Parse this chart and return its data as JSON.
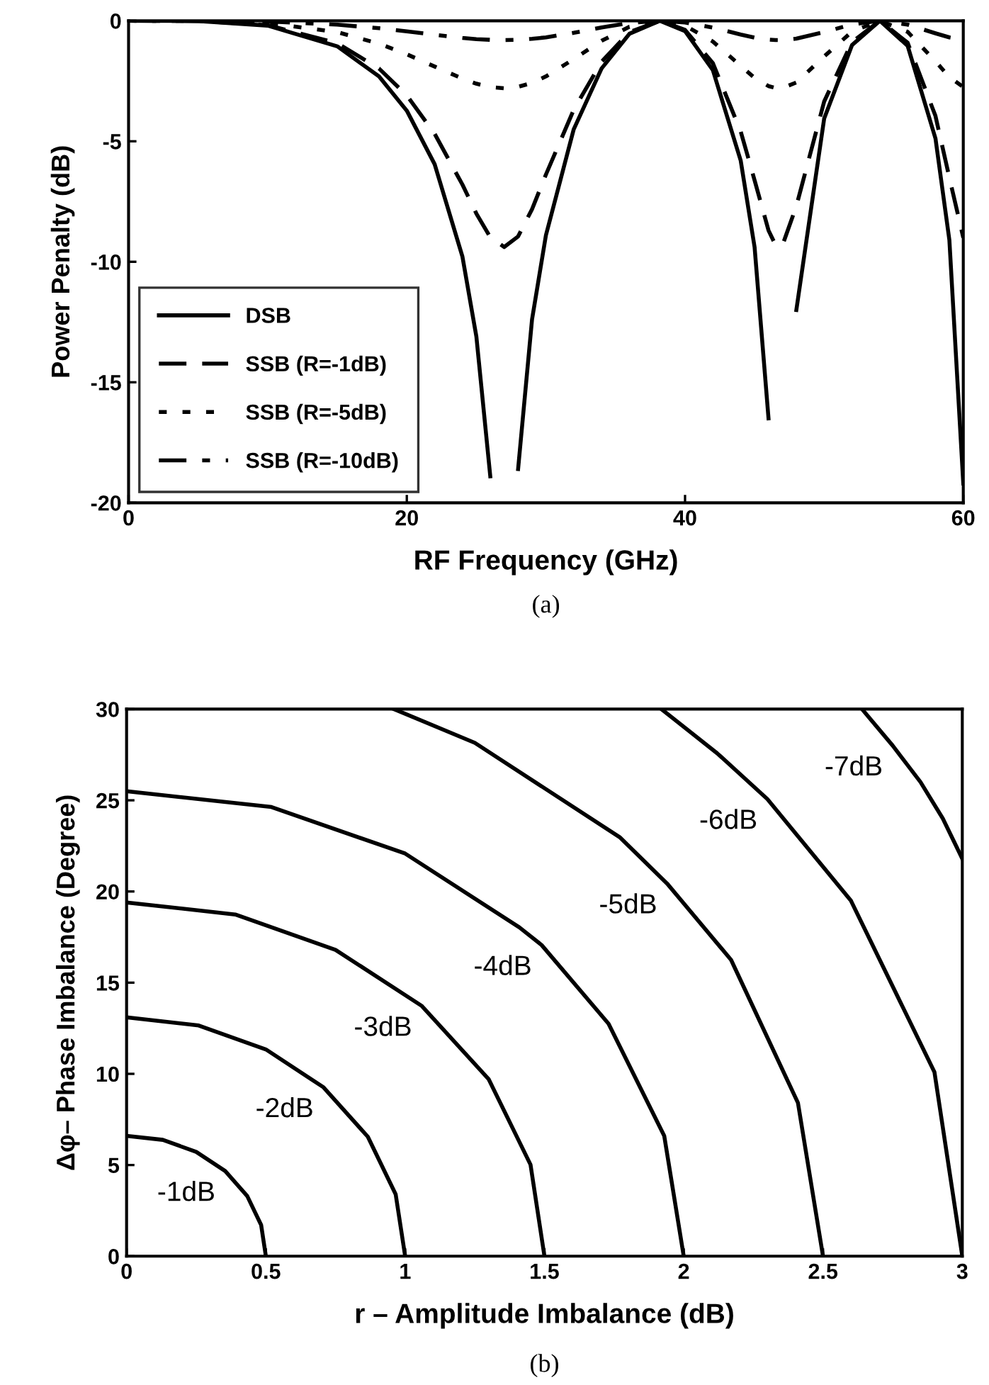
{
  "chart_data": [
    {
      "type": "line",
      "xlabel": "RF Frequency (GHz)",
      "ylabel": "Power Penalty (dB)",
      "annotations": [
        "(a)"
      ],
      "x": [
        0,
        5,
        10,
        15,
        18,
        20,
        22,
        24,
        25,
        26,
        27,
        28,
        29,
        30,
        32,
        34,
        36,
        38.2,
        40,
        42,
        44,
        45,
        46,
        46.5,
        47,
        48,
        50,
        52,
        54,
        56,
        58,
        59,
        60
      ],
      "series": [
        {
          "name": "DSB",
          "color": "#000000",
          "line_style": "solid",
          "values": [
            0,
            -0.01,
            -0.2,
            -1.06,
            -2.31,
            -3.73,
            -5.95,
            -9.79,
            -13.1,
            -18.9,
            null,
            -18.6,
            -12.4,
            -8.9,
            -4.5,
            -1.98,
            -0.54,
            0,
            -0.43,
            -2.05,
            -5.8,
            -9.4,
            -16.5,
            null,
            null,
            -12,
            -4.06,
            -1.01,
            0,
            -1.04,
            -4.88,
            -9.1,
            -19.2
          ]
        },
        {
          "name": "SSB (R=-1dB)",
          "color": "#000000",
          "line_style": "dashed",
          "values": [
            0,
            -0.01,
            -0.18,
            -0.93,
            -1.98,
            -3.1,
            -4.69,
            -6.8,
            -8.0,
            -8.98,
            -9.39,
            -8.95,
            -7.82,
            -6.38,
            -3.69,
            -1.7,
            -0.47,
            0,
            -0.38,
            -1.76,
            -4.59,
            -6.62,
            -8.7,
            -9.3,
            -9.32,
            -7.69,
            -3.35,
            -0.88,
            0,
            -0.91,
            -3.95,
            -6.51,
            -9.0
          ]
        },
        {
          "name": "SSB (R=-5dB)",
          "color": "#000000",
          "line_style": "dotted",
          "values": [
            0,
            -0.01,
            -0.09,
            -0.47,
            -0.95,
            -1.39,
            -1.9,
            -2.4,
            -2.61,
            -2.75,
            -2.8,
            -2.74,
            -2.58,
            -2.31,
            -1.59,
            -0.83,
            -0.25,
            0,
            -0.2,
            -0.86,
            -1.87,
            -2.37,
            -2.71,
            -2.79,
            -2.79,
            -2.56,
            -1.48,
            -0.45,
            0,
            -0.46,
            -1.68,
            -2.34,
            -2.75
          ]
        },
        {
          "name": "SSB (R=-10dB)",
          "color": "#000000",
          "line_style": "dashdot",
          "values": [
            0,
            0,
            -0.03,
            -0.16,
            -0.31,
            -0.44,
            -0.58,
            -0.71,
            -0.76,
            -0.79,
            -0.8,
            -0.79,
            -0.75,
            -0.69,
            -0.5,
            -0.28,
            -0.09,
            0,
            -0.07,
            -0.28,
            -0.57,
            -0.7,
            -0.78,
            -0.8,
            -0.8,
            -0.74,
            -0.47,
            -0.15,
            0,
            -0.16,
            -0.52,
            -0.69,
            -0.79
          ]
        }
      ],
      "xlim": [
        0,
        60
      ],
      "xticks": [
        0,
        20,
        40,
        60
      ],
      "ylim": [
        -20,
        0
      ],
      "yticks": [
        -20,
        -15,
        -10,
        -5,
        0
      ],
      "grid": false,
      "legend": "bottom left"
    },
    {
      "type": "line",
      "xlabel": "r – Amplitude Imbalance (dB)",
      "ylabel": "Δφ– Phase Imbalance (Degree)",
      "annotations": [
        {
          "text": "-1dB",
          "x": 0.354,
          "y": 4.67
        },
        {
          "text": "-2dB",
          "x": 0.707,
          "y": 9.26
        },
        {
          "text": "-3dB",
          "x": 1.06,
          "y": 13.72
        },
        {
          "text": "-4dB",
          "x": 1.49,
          "y": 17.06
        },
        {
          "text": "-5dB",
          "x": 1.94,
          "y": 20.44
        },
        {
          "text": "-6dB",
          "x": 2.3,
          "y": 25.07
        },
        {
          "text": "-7dB",
          "x": 2.75,
          "y": 28
        },
        "(b)"
      ],
      "series": [
        {
          "color": "#000000",
          "x": [
            0,
            0.13,
            0.25,
            0.354,
            0.433,
            0.483,
            0.5
          ],
          "values": [
            6.6,
            6.38,
            5.72,
            4.67,
            3.3,
            1.71,
            0
          ]
        },
        {
          "color": "#000000",
          "x": [
            0,
            0.259,
            0.5,
            0.707,
            0.866,
            0.966,
            1
          ],
          "values": [
            13.1,
            12.65,
            11.34,
            9.26,
            6.55,
            3.39,
            0
          ]
        },
        {
          "color": "#000000",
          "x": [
            0,
            0.39,
            0.75,
            1.06,
            1.3,
            1.45,
            1.5
          ],
          "values": [
            19.4,
            18.74,
            16.8,
            13.72,
            9.7,
            5.02,
            0
          ]
        },
        {
          "color": "#000000",
          "x": [
            0,
            0.52,
            1,
            1.41,
            1.49,
            1.73,
            1.93,
            2
          ],
          "values": [
            25.5,
            24.63,
            22.08,
            18.03,
            17.06,
            12.75,
            6.6,
            0
          ]
        },
        {
          "color": "#000000",
          "x": [
            0.96,
            1.25,
            1.77,
            1.94,
            2.17,
            2.41,
            2.5
          ],
          "values": [
            30,
            28.15,
            22.98,
            20.44,
            16.25,
            8.41,
            0
          ]
        },
        {
          "color": "#000000",
          "x": [
            1.92,
            2.12,
            2.3,
            2.6,
            2.9,
            3
          ],
          "values": [
            30,
            27.58,
            25.07,
            19.5,
            10.1,
            0
          ]
        },
        {
          "color": "#000000",
          "x": [
            2.64,
            2.75,
            2.85,
            2.93,
            3
          ],
          "values": [
            30,
            28,
            26,
            24,
            21.8
          ]
        }
      ],
      "xlim": [
        0,
        3
      ],
      "xticks": [
        0,
        0.5,
        1,
        1.5,
        2,
        2.5,
        3
      ],
      "ylim": [
        0,
        30
      ],
      "yticks": [
        0,
        5,
        10,
        15,
        20,
        25,
        30
      ],
      "grid": false,
      "legend": false
    }
  ]
}
